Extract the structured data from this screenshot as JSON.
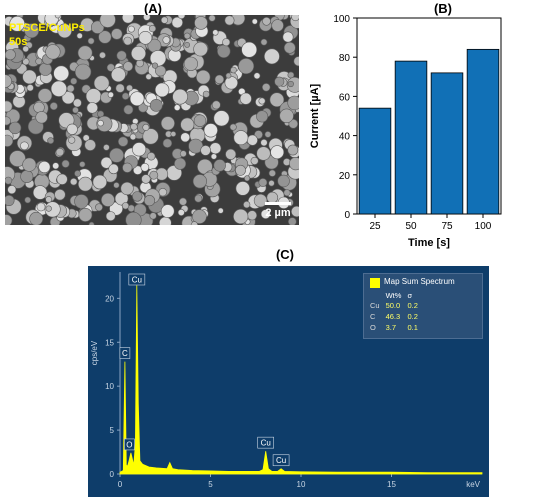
{
  "panel_a": {
    "label": "(A)",
    "sample_label_line1": "PTSCE/CuNPs",
    "sample_label_line2": "50s",
    "scale_bar": "2 µm"
  },
  "panel_b": {
    "label": "(B)"
  },
  "panel_c": {
    "label": "(C)",
    "legend_title": "Map Sum Spectrum",
    "table_headers": [
      "",
      "Wt%",
      "σ"
    ],
    "table_rows": [
      [
        "Cu",
        "50.0",
        "0.2"
      ],
      [
        "C",
        "46.3",
        "0.2"
      ],
      [
        "O",
        "3.7",
        "0.1"
      ]
    ],
    "peak_labels": [
      "Cu",
      "C",
      "O",
      "Cu",
      "Cu"
    ]
  },
  "chart_data": [
    {
      "type": "bar",
      "categories": [
        "25",
        "50",
        "75",
        "100"
      ],
      "values": [
        54,
        78,
        72,
        84
      ],
      "xlabel": "Time [s]",
      "ylabel": "Current [µA]",
      "ylim": [
        0,
        100
      ],
      "yticks": [
        0,
        20,
        40,
        60,
        80,
        100
      ],
      "color": "#1170b6",
      "grid": false
    },
    {
      "type": "line",
      "xlabel": "keV",
      "ylabel": "cps/eV",
      "xlim": [
        0,
        20
      ],
      "ylim": [
        0,
        23
      ],
      "xticks": [
        0,
        5,
        10,
        15
      ],
      "yticks": [
        0,
        5,
        10,
        15,
        20
      ],
      "color": "#ffff00",
      "background": "#0e3d6a",
      "x": [
        0,
        0.18,
        0.27,
        0.35,
        0.42,
        0.5,
        0.6,
        0.76,
        0.85,
        0.93,
        1.01,
        1.1,
        1.25,
        1.6,
        2.0,
        2.6,
        2.75,
        2.9,
        3.2,
        4.0,
        5.0,
        6.0,
        7.0,
        7.7,
        7.9,
        8.05,
        8.2,
        8.4,
        8.7,
        8.9,
        9.1,
        10.0,
        12.0,
        15.0,
        17.0,
        19.0,
        20.0
      ],
      "y": [
        0.2,
        0.4,
        12.8,
        1.0,
        0.9,
        1.5,
        2.4,
        1.0,
        3.5,
        21.5,
        8.0,
        1.5,
        1.1,
        0.8,
        0.7,
        0.6,
        1.3,
        0.6,
        0.5,
        0.4,
        0.35,
        0.3,
        0.3,
        0.3,
        0.5,
        2.6,
        0.6,
        0.3,
        0.3,
        0.6,
        0.3,
        0.25,
        0.2,
        0.2,
        0.15,
        0.15,
        0.15
      ],
      "peaks": [
        {
          "x": 0.93,
          "label": "Cu"
        },
        {
          "x": 0.27,
          "label": "C"
        },
        {
          "x": 0.52,
          "label": "O"
        },
        {
          "x": 8.05,
          "label": "Cu"
        },
        {
          "x": 8.9,
          "label": "Cu"
        }
      ]
    }
  ]
}
